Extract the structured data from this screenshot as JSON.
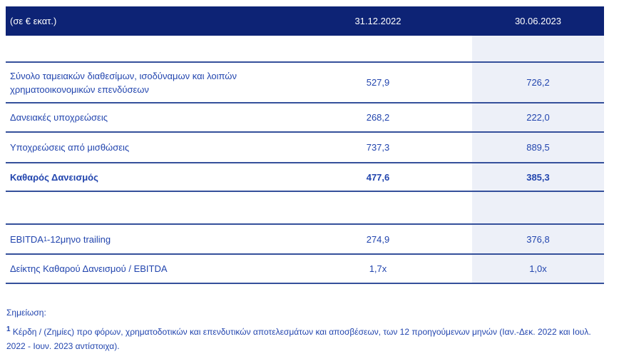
{
  "colors": {
    "navy": "#0d2375",
    "line": "#35509b",
    "text_blue": "#2245ae",
    "col_bg": "#edf0f8",
    "white": "#ffffff"
  },
  "table": {
    "unit_label": "(σε € εκατ.)",
    "columns": {
      "col2022": "31.12.2022",
      "col2023": "30.06.2023"
    },
    "rows": [
      {
        "label": "Σύνολο ταμειακών διαθεσίμων, ισοδύναμων και λοιπών χρηματοοικονομικών επενδύσεων",
        "v2022": "527,9",
        "v2023": "726,2"
      },
      {
        "label": "Δανειακές υποχρεώσεις",
        "v2022": "268,2",
        "v2023": "222,0"
      },
      {
        "label": "Υποχρεώσεις από μισθώσεις",
        "v2022": "737,3",
        "v2023": "889,5"
      },
      {
        "label": "Καθαρός Δανεισμός",
        "v2022": "477,6",
        "v2023": "385,3"
      },
      {
        "label_prefix": "EBITDA",
        "label_sup": "1",
        "label_suffix": " -12μηνο trailing",
        "v2022": "274,9",
        "v2023": "376,8"
      },
      {
        "label": "Δείκτης Καθαρού Δανεισμού / EBITDA",
        "v2022": "1,7x",
        "v2023": "1,0x"
      }
    ]
  },
  "notes": {
    "heading": "Σημείωση:",
    "footnote_sup": "1",
    "footnote_text": " Κέρδη / (Ζημίες) προ φόρων, χρηματοδοτικών και επενδυτικών αποτελεσμάτων και αποσβέσεων, των 12 προηγούμενων μηνών (Ιαν.-Δεκ. 2022 και Ιουλ. 2022 - Ιουν. 2023 αντίστοιχα)."
  }
}
